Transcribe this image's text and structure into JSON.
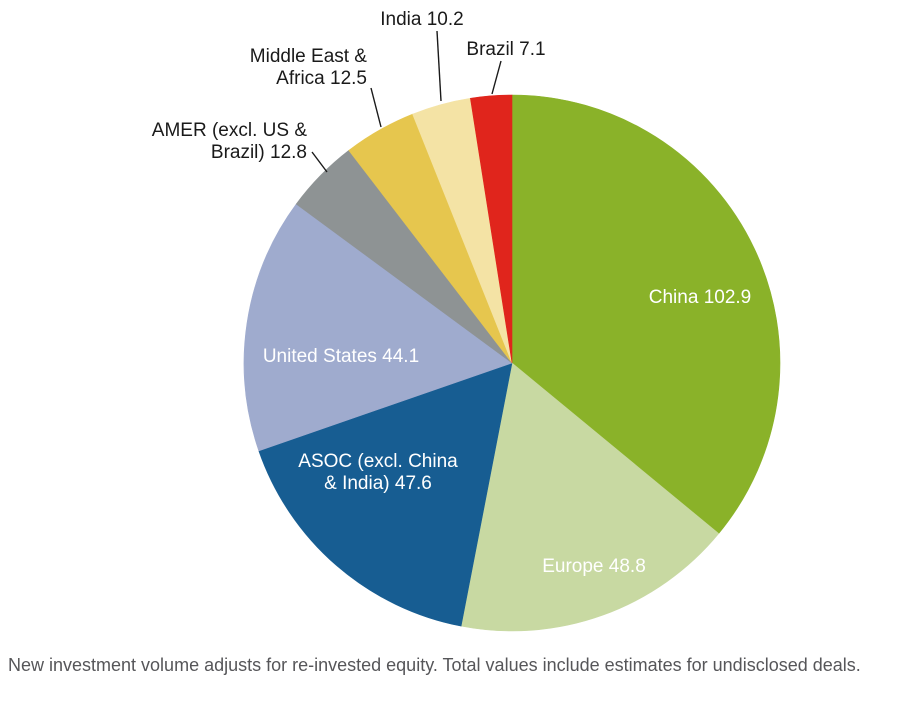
{
  "chart_data": {
    "type": "pie",
    "title": "",
    "total": 286.0,
    "direction": "clockwise",
    "start_angle_deg": 0,
    "legend": "none",
    "labels_show_values": true,
    "segments": [
      {
        "name": "China",
        "value": 102.9,
        "label": "China 102.9",
        "color": "#8ab229",
        "label_color": "#ffffff",
        "placement": "inside"
      },
      {
        "name": "Europe",
        "value": 48.8,
        "label": "Europe 48.8",
        "color": "#c8d9a2",
        "label_color": "#ffffff",
        "placement": "inside"
      },
      {
        "name": "ASOC (excl. China & India)",
        "value": 47.6,
        "label": "ASOC (excl. China\n& India) 47.6",
        "color": "#175d92",
        "label_color": "#ffffff",
        "placement": "inside"
      },
      {
        "name": "United States",
        "value": 44.1,
        "label": "United States 44.1",
        "color": "#9fabce",
        "label_color": "#ffffff",
        "placement": "inside"
      },
      {
        "name": "AMER (excl. US & Brazil)",
        "value": 12.8,
        "label": "AMER (excl. US &\nBrazil) 12.8",
        "color": "#8e9394",
        "label_color": "#1a1a1a",
        "placement": "outside"
      },
      {
        "name": "Middle East & Africa",
        "value": 12.5,
        "label": "Middle East &\nAfrica 12.5",
        "color": "#e6c64e",
        "label_color": "#1a1a1a",
        "placement": "outside"
      },
      {
        "name": "India",
        "value": 10.2,
        "label": "India 10.2",
        "color": "#f4e3a5",
        "label_color": "#1a1a1a",
        "placement": "outside"
      },
      {
        "name": "Brazil",
        "value": 7.1,
        "label": "Brazil 7.1",
        "color": "#e0251c",
        "label_color": "#1a1a1a",
        "placement": "outside"
      }
    ]
  },
  "footnote": "New investment volume adjusts for re-invested equity. Total values include estimates for undisclosed deals."
}
